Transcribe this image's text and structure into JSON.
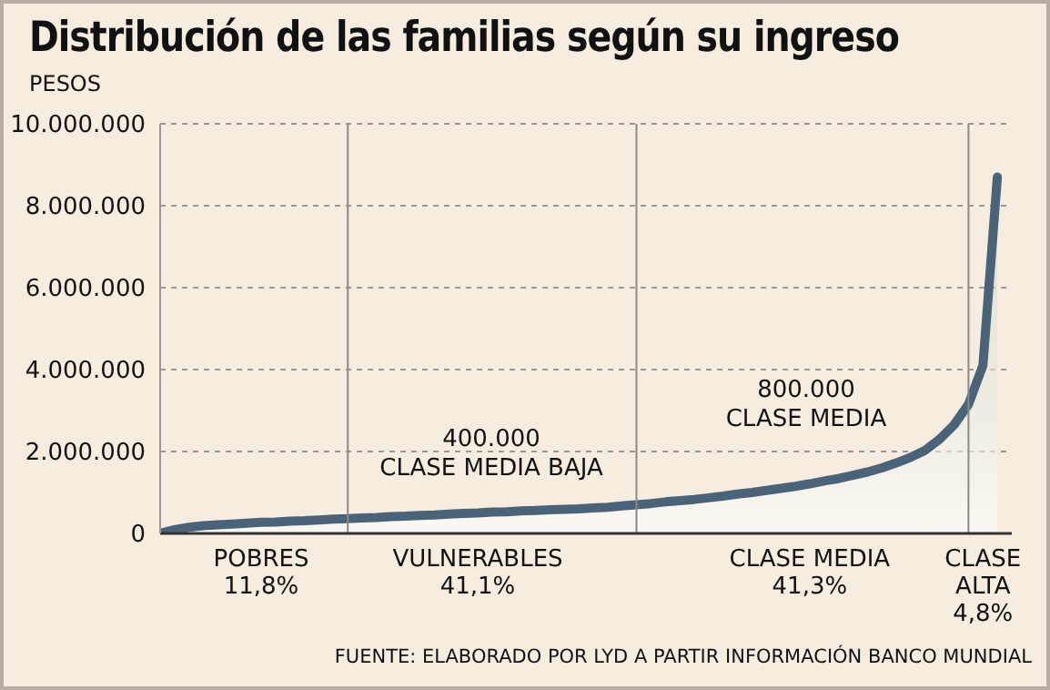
{
  "chart_data": {
    "type": "area",
    "title": "Distribución de las familias según su ingreso",
    "ylabel": "PESOS",
    "categories": [
      null,
      null,
      null,
      null,
      null,
      null,
      null,
      "POBRES\n11,8%",
      null,
      null,
      null,
      null,
      null,
      null,
      null,
      null,
      null,
      null,
      null,
      null,
      null,
      null,
      "VULNERABLES\n41,1%",
      null,
      null,
      null,
      null,
      null,
      null,
      null,
      null,
      null,
      null,
      null,
      null,
      null,
      null,
      null,
      null,
      null,
      null,
      null,
      null,
      null,
      null,
      "CLASE MEDIA\n41,3%",
      null,
      null,
      null,
      null,
      null,
      null,
      null,
      null,
      null,
      null,
      null,
      "CLASE\nALTA\n4,8%",
      null,
      null
    ],
    "series": [
      {
        "color": "#4a6378",
        "values": [
          0,
          90000,
          150000,
          190000,
          210000,
          230000,
          250000,
          270000,
          280000,
          300000,
          310000,
          330000,
          350000,
          360000,
          380000,
          390000,
          410000,
          420000,
          440000,
          450000,
          470000,
          490000,
          500000,
          520000,
          530000,
          550000,
          560000,
          580000,
          590000,
          600000,
          620000,
          640000,
          670000,
          700000,
          730000,
          770000,
          800000,
          830000,
          870000,
          910000,
          960000,
          1000000,
          1050000,
          1100000,
          1150000,
          1210000,
          1280000,
          1340000,
          1420000,
          1500000,
          1600000,
          1720000,
          1860000,
          2030000,
          2300000,
          2650000,
          3150000,
          4100000,
          8700000,
          null
        ]
      }
    ],
    "ylim": [
      0,
      10000000
    ],
    "yticks": [
      0,
      {
        "value": 2000000,
        "label": "2.000.000"
      },
      {
        "value": 4000000,
        "label": "4.000.000"
      },
      {
        "value": 6000000,
        "label": "6.000.000"
      },
      {
        "value": 8000000,
        "label": "8.000.000"
      },
      {
        "value": 10000000,
        "label": "10.000.000"
      }
    ],
    "grid": "y",
    "legend": false,
    "marker": "none",
    "line_style": "solid",
    "annotations": [
      "400.000\nCLASE MEDIA BAJA",
      "800.000\nCLASE MEDIA",
      "FUENTE: ELABORADO POR LYD A PARTIR INFORMACIÓN BANCO MUNDIAL"
    ]
  }
}
